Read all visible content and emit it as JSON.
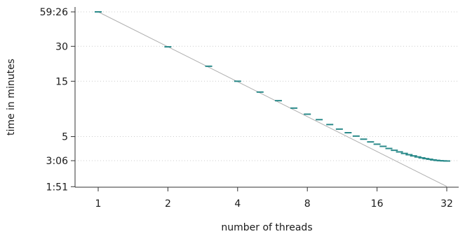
{
  "chart_data": {
    "type": "scatter",
    "xlabel": "number of threads",
    "ylabel": "time in minutes",
    "x_scale": "log2",
    "y_scale": "log",
    "xlim": [
      0.8,
      40
    ],
    "ylim": [
      1.85,
      62
    ],
    "x_ticks": [
      1,
      2,
      4,
      8,
      16,
      32
    ],
    "x_tick_labels": [
      "1",
      "2",
      "4",
      "8",
      "16",
      "32"
    ],
    "y_ticks": [
      1.85,
      3.1,
      5,
      15,
      30,
      59.43
    ],
    "y_tick_labels": [
      "1:51",
      "3:06",
      "5",
      "15",
      "30",
      "59:26"
    ],
    "y_gridlines": [
      3.1,
      5,
      15,
      30,
      59.43
    ],
    "grid": "horizontal dotted",
    "reference_line": {
      "description": "ideal linear speedup",
      "from": [
        1,
        59.43
      ],
      "to": [
        32,
        1.857
      ]
    },
    "series": [
      {
        "x": [
          1,
          2,
          3,
          4,
          5,
          6,
          7,
          8,
          9,
          10,
          11,
          12,
          13,
          14,
          15,
          16,
          17,
          18,
          19,
          20,
          21,
          22,
          23,
          24,
          25,
          26,
          27,
          28,
          29,
          30,
          31,
          32
        ],
        "y": [
          59.43,
          29.7,
          20.2,
          15.0,
          12.1,
          10.2,
          8.8,
          7.8,
          7.0,
          6.35,
          5.8,
          5.4,
          5.05,
          4.75,
          4.5,
          4.3,
          4.12,
          3.95,
          3.81,
          3.69,
          3.58,
          3.49,
          3.41,
          3.34,
          3.28,
          3.23,
          3.19,
          3.15,
          3.12,
          3.1,
          3.09,
          3.08
        ]
      }
    ],
    "colors": {
      "markers": "#2a8a8a",
      "reference_line": "#b0b0b0",
      "grid": "#cccccc",
      "axes": "#333333"
    }
  }
}
